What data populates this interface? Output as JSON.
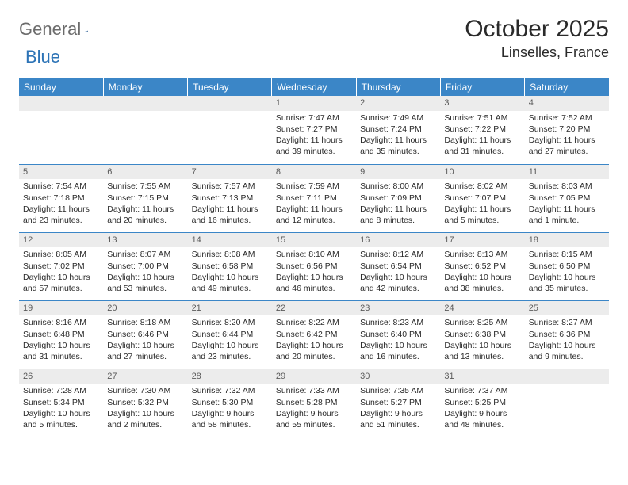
{
  "brand": {
    "textA": "General",
    "textB": "Blue"
  },
  "colors": {
    "header_bg": "#3b86c7",
    "header_text": "#ffffff",
    "daynum_bg": "#ececec",
    "row_border": "#3b86c7",
    "brand_blue": "#2c73b6",
    "brand_gray": "#6c6c6c"
  },
  "title": {
    "month": "October 2025",
    "location": "Linselles, France"
  },
  "dayHeaders": [
    "Sunday",
    "Monday",
    "Tuesday",
    "Wednesday",
    "Thursday",
    "Friday",
    "Saturday"
  ],
  "weeks": [
    [
      null,
      null,
      null,
      {
        "n": "1",
        "sr": "Sunrise: 7:47 AM",
        "ss": "Sunset: 7:27 PM",
        "dl": "Daylight: 11 hours and 39 minutes."
      },
      {
        "n": "2",
        "sr": "Sunrise: 7:49 AM",
        "ss": "Sunset: 7:24 PM",
        "dl": "Daylight: 11 hours and 35 minutes."
      },
      {
        "n": "3",
        "sr": "Sunrise: 7:51 AM",
        "ss": "Sunset: 7:22 PM",
        "dl": "Daylight: 11 hours and 31 minutes."
      },
      {
        "n": "4",
        "sr": "Sunrise: 7:52 AM",
        "ss": "Sunset: 7:20 PM",
        "dl": "Daylight: 11 hours and 27 minutes."
      }
    ],
    [
      {
        "n": "5",
        "sr": "Sunrise: 7:54 AM",
        "ss": "Sunset: 7:18 PM",
        "dl": "Daylight: 11 hours and 23 minutes."
      },
      {
        "n": "6",
        "sr": "Sunrise: 7:55 AM",
        "ss": "Sunset: 7:15 PM",
        "dl": "Daylight: 11 hours and 20 minutes."
      },
      {
        "n": "7",
        "sr": "Sunrise: 7:57 AM",
        "ss": "Sunset: 7:13 PM",
        "dl": "Daylight: 11 hours and 16 minutes."
      },
      {
        "n": "8",
        "sr": "Sunrise: 7:59 AM",
        "ss": "Sunset: 7:11 PM",
        "dl": "Daylight: 11 hours and 12 minutes."
      },
      {
        "n": "9",
        "sr": "Sunrise: 8:00 AM",
        "ss": "Sunset: 7:09 PM",
        "dl": "Daylight: 11 hours and 8 minutes."
      },
      {
        "n": "10",
        "sr": "Sunrise: 8:02 AM",
        "ss": "Sunset: 7:07 PM",
        "dl": "Daylight: 11 hours and 5 minutes."
      },
      {
        "n": "11",
        "sr": "Sunrise: 8:03 AM",
        "ss": "Sunset: 7:05 PM",
        "dl": "Daylight: 11 hours and 1 minute."
      }
    ],
    [
      {
        "n": "12",
        "sr": "Sunrise: 8:05 AM",
        "ss": "Sunset: 7:02 PM",
        "dl": "Daylight: 10 hours and 57 minutes."
      },
      {
        "n": "13",
        "sr": "Sunrise: 8:07 AM",
        "ss": "Sunset: 7:00 PM",
        "dl": "Daylight: 10 hours and 53 minutes."
      },
      {
        "n": "14",
        "sr": "Sunrise: 8:08 AM",
        "ss": "Sunset: 6:58 PM",
        "dl": "Daylight: 10 hours and 49 minutes."
      },
      {
        "n": "15",
        "sr": "Sunrise: 8:10 AM",
        "ss": "Sunset: 6:56 PM",
        "dl": "Daylight: 10 hours and 46 minutes."
      },
      {
        "n": "16",
        "sr": "Sunrise: 8:12 AM",
        "ss": "Sunset: 6:54 PM",
        "dl": "Daylight: 10 hours and 42 minutes."
      },
      {
        "n": "17",
        "sr": "Sunrise: 8:13 AM",
        "ss": "Sunset: 6:52 PM",
        "dl": "Daylight: 10 hours and 38 minutes."
      },
      {
        "n": "18",
        "sr": "Sunrise: 8:15 AM",
        "ss": "Sunset: 6:50 PM",
        "dl": "Daylight: 10 hours and 35 minutes."
      }
    ],
    [
      {
        "n": "19",
        "sr": "Sunrise: 8:16 AM",
        "ss": "Sunset: 6:48 PM",
        "dl": "Daylight: 10 hours and 31 minutes."
      },
      {
        "n": "20",
        "sr": "Sunrise: 8:18 AM",
        "ss": "Sunset: 6:46 PM",
        "dl": "Daylight: 10 hours and 27 minutes."
      },
      {
        "n": "21",
        "sr": "Sunrise: 8:20 AM",
        "ss": "Sunset: 6:44 PM",
        "dl": "Daylight: 10 hours and 23 minutes."
      },
      {
        "n": "22",
        "sr": "Sunrise: 8:22 AM",
        "ss": "Sunset: 6:42 PM",
        "dl": "Daylight: 10 hours and 20 minutes."
      },
      {
        "n": "23",
        "sr": "Sunrise: 8:23 AM",
        "ss": "Sunset: 6:40 PM",
        "dl": "Daylight: 10 hours and 16 minutes."
      },
      {
        "n": "24",
        "sr": "Sunrise: 8:25 AM",
        "ss": "Sunset: 6:38 PM",
        "dl": "Daylight: 10 hours and 13 minutes."
      },
      {
        "n": "25",
        "sr": "Sunrise: 8:27 AM",
        "ss": "Sunset: 6:36 PM",
        "dl": "Daylight: 10 hours and 9 minutes."
      }
    ],
    [
      {
        "n": "26",
        "sr": "Sunrise: 7:28 AM",
        "ss": "Sunset: 5:34 PM",
        "dl": "Daylight: 10 hours and 5 minutes."
      },
      {
        "n": "27",
        "sr": "Sunrise: 7:30 AM",
        "ss": "Sunset: 5:32 PM",
        "dl": "Daylight: 10 hours and 2 minutes."
      },
      {
        "n": "28",
        "sr": "Sunrise: 7:32 AM",
        "ss": "Sunset: 5:30 PM",
        "dl": "Daylight: 9 hours and 58 minutes."
      },
      {
        "n": "29",
        "sr": "Sunrise: 7:33 AM",
        "ss": "Sunset: 5:28 PM",
        "dl": "Daylight: 9 hours and 55 minutes."
      },
      {
        "n": "30",
        "sr": "Sunrise: 7:35 AM",
        "ss": "Sunset: 5:27 PM",
        "dl": "Daylight: 9 hours and 51 minutes."
      },
      {
        "n": "31",
        "sr": "Sunrise: 7:37 AM",
        "ss": "Sunset: 5:25 PM",
        "dl": "Daylight: 9 hours and 48 minutes."
      },
      null
    ]
  ]
}
